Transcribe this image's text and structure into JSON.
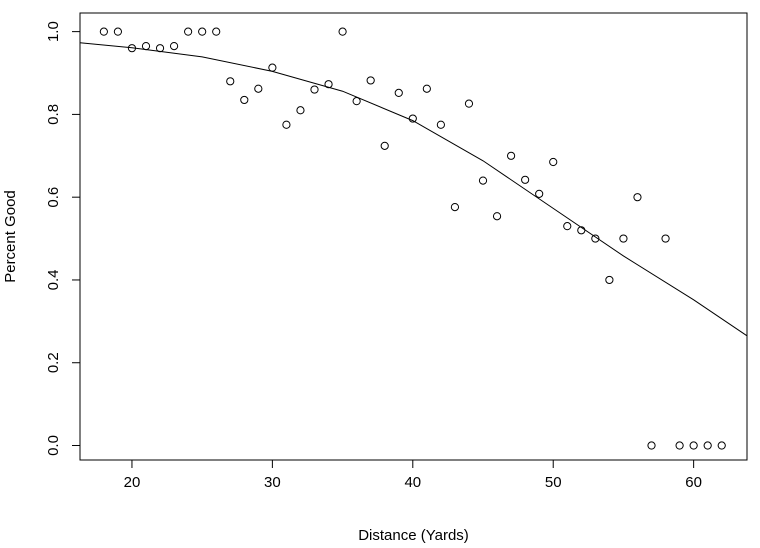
{
  "chart_data": {
    "type": "scatter",
    "title": "",
    "xlabel": "Distance (Yards)",
    "ylabel": "Percent Good",
    "xlim": [
      16.3,
      63.8
    ],
    "ylim": [
      -0.035,
      1.045
    ],
    "x_ticks": [
      20,
      30,
      40,
      50,
      60
    ],
    "y_ticks": [
      0.0,
      0.2,
      0.4,
      0.6,
      0.8,
      1.0
    ],
    "x_tick_labels": [
      "20",
      "30",
      "40",
      "50",
      "60"
    ],
    "y_tick_labels": [
      "0.0",
      "0.2",
      "0.4",
      "0.6",
      "0.8",
      "1.0"
    ],
    "grid": false,
    "points": [
      [
        18,
        1.0
      ],
      [
        19,
        1.0
      ],
      [
        20,
        0.96
      ],
      [
        21,
        0.965
      ],
      [
        22,
        0.96
      ],
      [
        23,
        0.965
      ],
      [
        24,
        1.0
      ],
      [
        25,
        1.0
      ],
      [
        26,
        1.0
      ],
      [
        27,
        0.88
      ],
      [
        28,
        0.835
      ],
      [
        29,
        0.862
      ],
      [
        30,
        0.913
      ],
      [
        31,
        0.775
      ],
      [
        32,
        0.81
      ],
      [
        33,
        0.86
      ],
      [
        34,
        0.873
      ],
      [
        35,
        1.0
      ],
      [
        36,
        0.832
      ],
      [
        37,
        0.882
      ],
      [
        38,
        0.724
      ],
      [
        39,
        0.852
      ],
      [
        40,
        0.79
      ],
      [
        41,
        0.862
      ],
      [
        42,
        0.775
      ],
      [
        43,
        0.576
      ],
      [
        44,
        0.826
      ],
      [
        45,
        0.64
      ],
      [
        46,
        0.554
      ],
      [
        47,
        0.7
      ],
      [
        48,
        0.642
      ],
      [
        49,
        0.608
      ],
      [
        50,
        0.685
      ],
      [
        51,
        0.53
      ],
      [
        52,
        0.52
      ],
      [
        53,
        0.5
      ],
      [
        54,
        0.4
      ],
      [
        55,
        0.5
      ],
      [
        56,
        0.6
      ],
      [
        57,
        0.0
      ],
      [
        58,
        0.5
      ],
      [
        59,
        0.0
      ],
      [
        60,
        0.0
      ],
      [
        61,
        0.0
      ],
      [
        62,
        0.0
      ]
    ],
    "fit_curve": [
      [
        16.3,
        0.973
      ],
      [
        20,
        0.961
      ],
      [
        25,
        0.939
      ],
      [
        30,
        0.904
      ],
      [
        35,
        0.856
      ],
      [
        40,
        0.785
      ],
      [
        45,
        0.688
      ],
      [
        50,
        0.573
      ],
      [
        55,
        0.458
      ],
      [
        60,
        0.352
      ],
      [
        63.8,
        0.265
      ]
    ]
  }
}
